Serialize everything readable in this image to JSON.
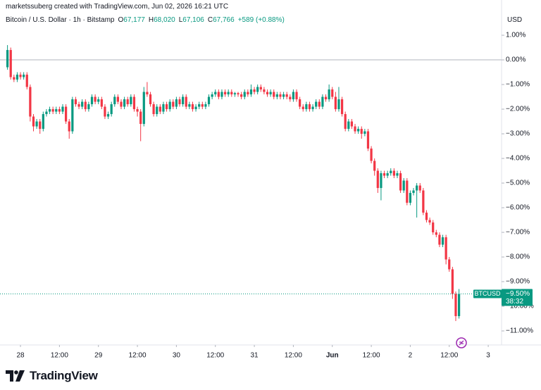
{
  "header": {
    "credit": "marketssuberg created with TradingView.com, Jun 02, 2026 16:21 UTC",
    "symbol": "Bitcoin / U.S. Dollar · 1h · Bitstamp",
    "currency": "USD",
    "ohlc_legend": [
      {
        "key": "O",
        "value": "67,177"
      },
      {
        "key": "H",
        "value": "68,020"
      },
      {
        "key": "L",
        "value": "67,106"
      },
      {
        "key": "C",
        "value": "67,766"
      }
    ],
    "change": "+589 (+0.88%)"
  },
  "brand": "TradingView",
  "chart_data": {
    "type": "candlestick",
    "up_color": "#089981",
    "down_color": "#f23645",
    "grid": false,
    "last_price": {
      "symbol": "BTCUSD",
      "label": "−9.50%",
      "countdown": "38:32"
    },
    "ylim": [
      -11.57,
      2.43
    ],
    "yticks": [
      {
        "value": 1,
        "label": "1.00%"
      },
      {
        "value": 0,
        "label": "0.00%"
      },
      {
        "value": -1,
        "label": "−1.00%"
      },
      {
        "value": -2,
        "label": "−2.00%"
      },
      {
        "value": -3,
        "label": "−3.00%"
      },
      {
        "value": -4,
        "label": "−4.00%"
      },
      {
        "value": -5,
        "label": "−5.00%"
      },
      {
        "value": -6,
        "label": "−6.00%"
      },
      {
        "value": -7,
        "label": "−7.00%"
      },
      {
        "value": -8,
        "label": "−8.00%"
      },
      {
        "value": -9,
        "label": "−9.00%"
      },
      {
        "value": -10,
        "label": "−10.00%"
      },
      {
        "value": -11,
        "label": "−11.00%"
      }
    ],
    "xlim": [
      -2.3,
      152.1
    ],
    "xticks": [
      {
        "value": 4,
        "label": "28"
      },
      {
        "value": 16,
        "label": "12:00"
      },
      {
        "value": 28,
        "label": "29"
      },
      {
        "value": 40,
        "label": "12:00"
      },
      {
        "value": 52,
        "label": "30"
      },
      {
        "value": 64,
        "label": "12:00"
      },
      {
        "value": 76,
        "label": "31"
      },
      {
        "value": 88,
        "label": "12:00"
      },
      {
        "value": 100,
        "label": "Jun"
      },
      {
        "value": 112,
        "label": "12:00"
      },
      {
        "value": 124,
        "label": "2"
      },
      {
        "value": 136,
        "label": "12:00"
      },
      {
        "value": 148,
        "label": "3"
      }
    ],
    "ohlc": [
      [
        -0.3,
        0.6,
        -0.4,
        0.4
      ],
      [
        0.4,
        0.5,
        -0.8,
        -0.7
      ],
      [
        -0.7,
        -0.6,
        -0.9,
        -0.8
      ],
      [
        -0.8,
        -0.5,
        -0.9,
        -0.6
      ],
      [
        -0.6,
        -0.5,
        -0.8,
        -0.7
      ],
      [
        -0.7,
        -0.5,
        -0.8,
        -0.6
      ],
      [
        -0.6,
        -0.5,
        -1.2,
        -1.1
      ],
      [
        -1.1,
        -1.0,
        -2.5,
        -2.3
      ],
      [
        -2.3,
        -2.2,
        -2.9,
        -2.7
      ],
      [
        -2.7,
        -2.4,
        -2.8,
        -2.5
      ],
      [
        -2.5,
        -2.4,
        -3.0,
        -2.8
      ],
      [
        -2.8,
        -2.1,
        -2.9,
        -2.2
      ],
      [
        -2.2,
        -2.0,
        -2.3,
        -2.1
      ],
      [
        -2.1,
        -1.9,
        -2.2,
        -2.0
      ],
      [
        -2.0,
        -1.9,
        -2.2,
        -2.1
      ],
      [
        -2.1,
        -1.9,
        -2.2,
        -2.0
      ],
      [
        -2.0,
        -1.9,
        -2.2,
        -2.1
      ],
      [
        -2.1,
        -1.8,
        -2.2,
        -1.9
      ],
      [
        -1.9,
        -1.8,
        -2.6,
        -2.5
      ],
      [
        -2.5,
        -2.4,
        -3.2,
        -2.9
      ],
      [
        -2.9,
        -1.5,
        -3.0,
        -1.6
      ],
      [
        -1.6,
        -1.5,
        -1.9,
        -1.8
      ],
      [
        -1.8,
        -1.7,
        -2.0,
        -1.9
      ],
      [
        -1.9,
        -1.6,
        -2.0,
        -1.7
      ],
      [
        -1.7,
        -1.6,
        -2.1,
        -2.0
      ],
      [
        -2.0,
        -1.7,
        -2.1,
        -1.8
      ],
      [
        -1.8,
        -1.4,
        -1.9,
        -1.5
      ],
      [
        -1.5,
        -1.4,
        -1.8,
        -1.7
      ],
      [
        -1.7,
        -1.5,
        -1.8,
        -1.6
      ],
      [
        -1.6,
        -1.5,
        -2.0,
        -1.9
      ],
      [
        -1.9,
        -1.8,
        -2.4,
        -2.3
      ],
      [
        -2.3,
        -2.1,
        -2.4,
        -2.2
      ],
      [
        -2.2,
        -1.7,
        -2.3,
        -1.8
      ],
      [
        -1.8,
        -1.4,
        -1.9,
        -1.5
      ],
      [
        -1.5,
        -1.4,
        -1.8,
        -1.7
      ],
      [
        -1.7,
        -1.6,
        -2.0,
        -1.9
      ],
      [
        -1.9,
        -1.5,
        -2.0,
        -1.6
      ],
      [
        -1.6,
        -1.5,
        -1.9,
        -1.8
      ],
      [
        -1.8,
        -1.4,
        -1.9,
        -1.5
      ],
      [
        -1.5,
        -1.4,
        -2.1,
        -2.0
      ],
      [
        -2.0,
        -1.9,
        -2.3,
        -2.1
      ],
      [
        -2.1,
        -2.0,
        -3.3,
        -2.6
      ],
      [
        -2.6,
        -1.1,
        -2.7,
        -1.3
      ],
      [
        -1.3,
        -0.9,
        -1.5,
        -1.4
      ],
      [
        -1.4,
        -1.3,
        -1.9,
        -1.8
      ],
      [
        -1.8,
        -1.7,
        -2.3,
        -2.2
      ],
      [
        -2.2,
        -1.8,
        -2.3,
        -1.9
      ],
      [
        -1.9,
        -1.8,
        -2.2,
        -2.1
      ],
      [
        -2.1,
        -1.7,
        -2.2,
        -1.8
      ],
      [
        -1.8,
        -1.7,
        -2.1,
        -2.0
      ],
      [
        -2.0,
        -1.6,
        -2.1,
        -1.7
      ],
      [
        -1.7,
        -1.6,
        -2.0,
        -1.9
      ],
      [
        -1.9,
        -1.5,
        -2.0,
        -1.6
      ],
      [
        -1.6,
        -1.5,
        -1.9,
        -1.8
      ],
      [
        -1.8,
        -1.4,
        -1.9,
        -1.5
      ],
      [
        -1.5,
        -1.4,
        -2.0,
        -1.9
      ],
      [
        -1.9,
        -1.7,
        -2.0,
        -1.8
      ],
      [
        -1.8,
        -1.7,
        -2.1,
        -2.0
      ],
      [
        -2.0,
        -1.8,
        -2.1,
        -1.9
      ],
      [
        -1.9,
        -1.7,
        -2.0,
        -1.8
      ],
      [
        -1.8,
        -1.7,
        -2.0,
        -1.9
      ],
      [
        -1.9,
        -1.7,
        -2.0,
        -1.8
      ],
      [
        -1.8,
        -1.4,
        -1.9,
        -1.5
      ],
      [
        -1.5,
        -1.3,
        -1.6,
        -1.4
      ],
      [
        -1.4,
        -1.2,
        -1.5,
        -1.3
      ],
      [
        -1.3,
        -1.2,
        -1.6,
        -1.5
      ],
      [
        -1.5,
        -1.2,
        -1.6,
        -1.3
      ],
      [
        -1.3,
        -1.2,
        -1.5,
        -1.4
      ],
      [
        -1.4,
        -1.2,
        -1.5,
        -1.3
      ],
      [
        -1.3,
        -1.2,
        -1.5,
        -1.4
      ],
      [
        -1.4,
        -1.3,
        -1.5,
        -1.35
      ],
      [
        -1.35,
        -1.3,
        -1.5,
        -1.4
      ],
      [
        -1.4,
        -1.3,
        -1.6,
        -1.5
      ],
      [
        -1.5,
        -1.2,
        -1.6,
        -1.3
      ],
      [
        -1.3,
        -1.2,
        -1.5,
        -1.4
      ],
      [
        -1.4,
        -1.0,
        -1.5,
        -1.2
      ],
      [
        -1.2,
        -1.1,
        -1.4,
        -1.3
      ],
      [
        -1.3,
        -1.0,
        -1.4,
        -1.1
      ],
      [
        -1.1,
        -1.0,
        -1.3,
        -1.2
      ],
      [
        -1.2,
        -1.1,
        -1.4,
        -1.3
      ],
      [
        -1.3,
        -1.2,
        -1.5,
        -1.4
      ],
      [
        -1.4,
        -1.2,
        -1.5,
        -1.3
      ],
      [
        -1.3,
        -1.2,
        -1.6,
        -1.5
      ],
      [
        -1.5,
        -1.3,
        -1.6,
        -1.4
      ],
      [
        -1.4,
        -1.3,
        -1.6,
        -1.5
      ],
      [
        -1.5,
        -1.3,
        -1.6,
        -1.4
      ],
      [
        -1.4,
        -1.3,
        -1.6,
        -1.5
      ],
      [
        -1.5,
        -1.4,
        -1.7,
        -1.6
      ],
      [
        -1.6,
        -1.2,
        -1.7,
        -1.3
      ],
      [
        -1.3,
        -1.2,
        -1.7,
        -1.6
      ],
      [
        -1.6,
        -1.5,
        -2.0,
        -1.9
      ],
      [
        -1.9,
        -1.8,
        -2.1,
        -2.0
      ],
      [
        -2.0,
        -1.7,
        -2.1,
        -1.8
      ],
      [
        -1.8,
        -1.7,
        -2.1,
        -2.0
      ],
      [
        -2.0,
        -1.8,
        -2.1,
        -1.9
      ],
      [
        -1.9,
        -1.6,
        -2.0,
        -1.7
      ],
      [
        -1.7,
        -1.6,
        -2.0,
        -1.9
      ],
      [
        -1.9,
        -1.4,
        -2.0,
        -1.5
      ],
      [
        -1.5,
        -1.4,
        -1.7,
        -1.6
      ],
      [
        -1.6,
        -1.0,
        -1.7,
        -1.2
      ],
      [
        -1.2,
        -1.1,
        -1.6,
        -1.5
      ],
      [
        -1.5,
        -1.3,
        -2.1,
        -2.0
      ],
      [
        -2.0,
        -1.1,
        -2.1,
        -1.6
      ],
      [
        -1.6,
        -1.5,
        -2.3,
        -2.2
      ],
      [
        -2.2,
        -2.1,
        -2.9,
        -2.8
      ],
      [
        -2.8,
        -2.4,
        -2.9,
        -2.5
      ],
      [
        -2.5,
        -2.4,
        -2.8,
        -2.7
      ],
      [
        -2.7,
        -2.6,
        -3.0,
        -2.9
      ],
      [
        -2.9,
        -2.7,
        -3.0,
        -2.8
      ],
      [
        -2.8,
        -2.7,
        -3.2,
        -3.0
      ],
      [
        -3.0,
        -2.8,
        -3.1,
        -2.9
      ],
      [
        -2.9,
        -2.8,
        -3.7,
        -3.6
      ],
      [
        -3.6,
        -3.5,
        -4.2,
        -4.1
      ],
      [
        -4.1,
        -4.0,
        -4.7,
        -4.5
      ],
      [
        -4.5,
        -4.4,
        -5.4,
        -5.2
      ],
      [
        -5.2,
        -4.5,
        -5.7,
        -4.6
      ],
      [
        -4.6,
        -4.5,
        -4.8,
        -4.7
      ],
      [
        -4.7,
        -4.5,
        -4.8,
        -4.6
      ],
      [
        -4.6,
        -4.4,
        -4.7,
        -4.5
      ],
      [
        -4.5,
        -4.4,
        -4.8,
        -4.7
      ],
      [
        -4.7,
        -4.5,
        -4.8,
        -4.6
      ],
      [
        -4.6,
        -4.5,
        -5.4,
        -5.3
      ],
      [
        -5.3,
        -4.8,
        -5.4,
        -4.9
      ],
      [
        -4.9,
        -4.8,
        -5.9,
        -5.8
      ],
      [
        -5.8,
        -5.3,
        -5.9,
        -5.4
      ],
      [
        -5.4,
        -5.2,
        -5.5,
        -5.3
      ],
      [
        -5.3,
        -5.0,
        -6.4,
        -5.1
      ],
      [
        -5.1,
        -5.0,
        -5.4,
        -5.3
      ],
      [
        -5.3,
        -5.2,
        -6.3,
        -6.2
      ],
      [
        -6.2,
        -6.1,
        -6.6,
        -6.5
      ],
      [
        -6.5,
        -6.4,
        -6.7,
        -6.6
      ],
      [
        -6.6,
        -6.5,
        -7.1,
        -7.0
      ],
      [
        -7.0,
        -6.9,
        -7.2,
        -7.1
      ],
      [
        -7.1,
        -7.0,
        -7.6,
        -7.5
      ],
      [
        -7.5,
        -7.1,
        -7.6,
        -7.2
      ],
      [
        -7.2,
        -7.1,
        -8.3,
        -8.1
      ],
      [
        -8.1,
        -8.0,
        -8.6,
        -8.5
      ],
      [
        -8.5,
        -8.4,
        -9.7,
        -9.5
      ],
      [
        -9.5,
        -9.4,
        -10.6,
        -10.4
      ],
      [
        -10.4,
        -9.3,
        -10.5,
        -9.5
      ]
    ]
  }
}
